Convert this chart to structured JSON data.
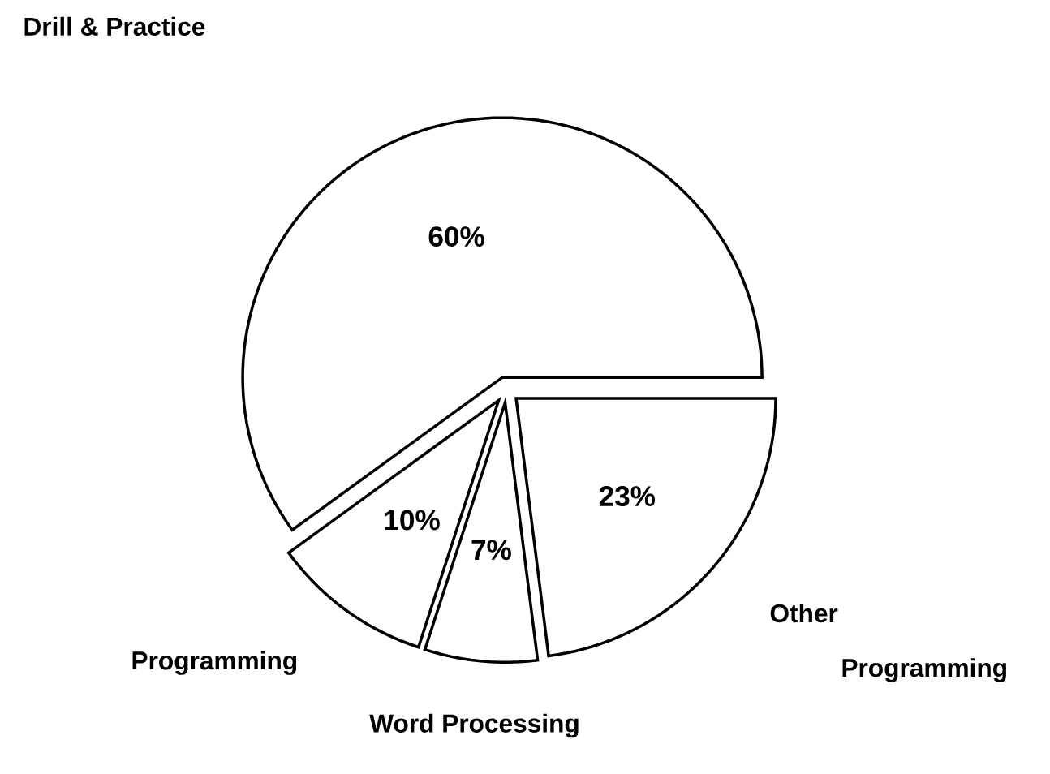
{
  "chart_data": {
    "type": "pie",
    "categories": [
      "Drill & Practice",
      "Programming",
      "Word Processing",
      "Other"
    ],
    "values": [
      60,
      10,
      7,
      23
    ],
    "colors": [
      "#ffffff",
      "#ffffff",
      "#ffffff",
      "#ffffff"
    ],
    "value_labels": [
      "60%",
      "10%",
      "7%",
      "23%"
    ],
    "annotations": [
      "Programming"
    ]
  }
}
